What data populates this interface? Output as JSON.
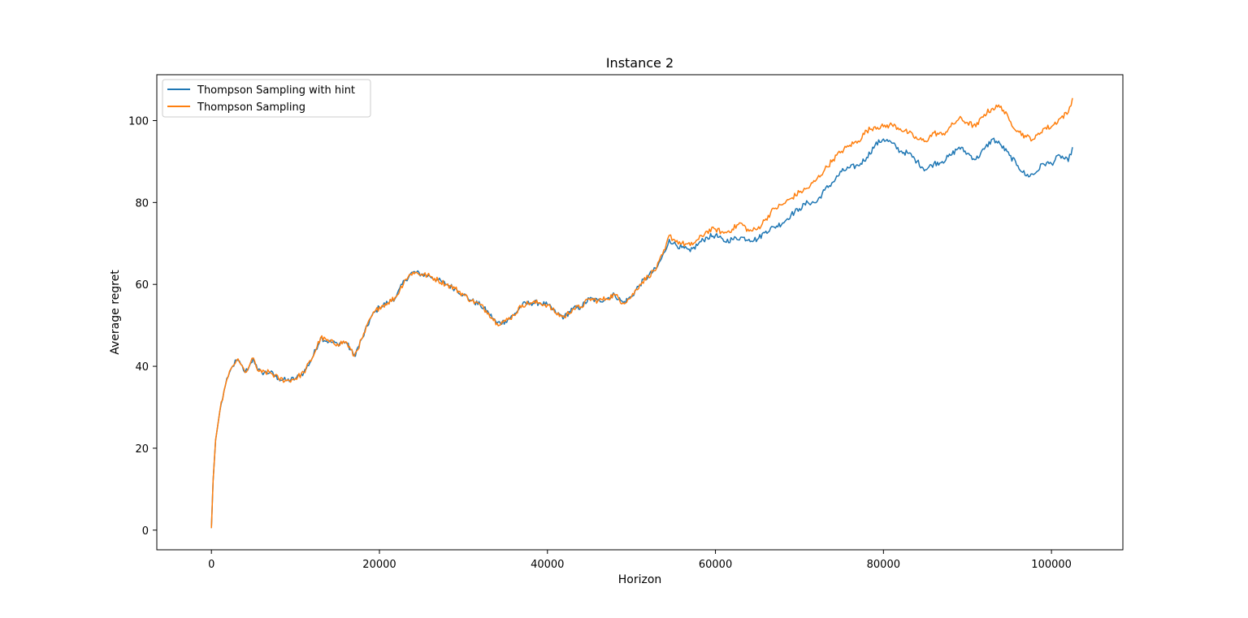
{
  "chart_data": {
    "type": "line",
    "title": "Instance 2",
    "xlabel": "Horizon",
    "ylabel": "Average regret",
    "xlim": [
      -6500,
      108500
    ],
    "ylim": [
      -4.8,
      111.2
    ],
    "xticks": [
      0,
      20000,
      40000,
      60000,
      80000,
      100000
    ],
    "yticks": [
      0,
      20,
      40,
      60,
      80,
      100
    ],
    "grid": false,
    "legend_position": "upper left",
    "series": [
      {
        "name": "Thompson Sampling with hint",
        "color": "#1f77b4",
        "x": [
          0,
          200,
          500,
          1000,
          1500,
          2000,
          2500,
          3000,
          3500,
          4000,
          4500,
          5000,
          5500,
          6000,
          7000,
          8000,
          9000,
          10000,
          11000,
          12000,
          13000,
          14000,
          15000,
          16000,
          17000,
          18000,
          19000,
          20000,
          21000,
          22000,
          23000,
          24000,
          25000,
          26000,
          27000,
          28000,
          29000,
          30000,
          31000,
          32000,
          33000,
          34000,
          35000,
          36000,
          37000,
          38000,
          39000,
          40000,
          41000,
          42000,
          43000,
          44000,
          45000,
          46000,
          47000,
          48000,
          49000,
          50000,
          51000,
          52000,
          53000,
          54000,
          54500,
          55000,
          56000,
          57000,
          58000,
          59000,
          60000,
          61000,
          62000,
          63000,
          64000,
          65000,
          66000,
          67000,
          68000,
          69000,
          70000,
          71000,
          72000,
          73000,
          74000,
          75000,
          76000,
          77000,
          78000,
          79000,
          80000,
          81000,
          82000,
          83000,
          84000,
          85000,
          86000,
          87000,
          88000,
          89000,
          90000,
          91000,
          92000,
          93000,
          94000,
          95000,
          96000,
          97000,
          98000,
          99000,
          100000,
          101000,
          102000,
          102500
        ],
        "y": [
          0.5,
          12,
          22,
          29,
          34,
          37.5,
          40,
          41.5,
          40.5,
          38.5,
          40,
          42,
          39,
          38.5,
          38.5,
          37,
          36.5,
          37,
          38.5,
          42,
          47,
          46,
          45.5,
          46,
          42.5,
          47,
          52,
          54.5,
          55.5,
          57,
          61,
          63,
          62.5,
          62,
          61,
          60,
          59,
          57.5,
          56,
          55,
          53,
          50.5,
          51,
          52.5,
          55,
          55.5,
          55.5,
          55,
          53,
          52,
          54,
          54.5,
          56.5,
          56,
          56.5,
          57.5,
          55.5,
          57,
          60,
          62,
          64,
          68,
          71,
          70,
          69,
          68,
          70,
          71.5,
          72,
          70.5,
          71,
          71.5,
          71,
          71,
          73,
          74,
          75,
          77,
          78.5,
          80,
          80,
          83,
          85,
          87.5,
          88.5,
          89,
          91,
          94,
          95.5,
          94.5,
          92.5,
          92,
          90,
          88,
          89.5,
          90,
          91.5,
          93.5,
          92,
          90.5,
          93,
          95.5,
          94,
          91.5,
          89,
          86.5,
          87,
          89.5,
          89.5,
          91.5,
          90,
          93.5
        ]
      },
      {
        "name": "Thompson Sampling",
        "color": "#ff7f0e",
        "x": [
          0,
          200,
          500,
          1000,
          1500,
          2000,
          2500,
          3000,
          3500,
          4000,
          4500,
          5000,
          5500,
          6000,
          7000,
          8000,
          9000,
          10000,
          11000,
          12000,
          13000,
          14000,
          15000,
          16000,
          17000,
          18000,
          19000,
          20000,
          21000,
          22000,
          23000,
          24000,
          25000,
          26000,
          27000,
          28000,
          29000,
          30000,
          31000,
          32000,
          33000,
          34000,
          35000,
          36000,
          37000,
          38000,
          39000,
          40000,
          41000,
          42000,
          43000,
          44000,
          45000,
          46000,
          47000,
          48000,
          49000,
          50000,
          51000,
          52000,
          53000,
          54000,
          54500,
          55000,
          56000,
          57000,
          58000,
          59000,
          60000,
          61000,
          62000,
          63000,
          64000,
          65000,
          66000,
          67000,
          68000,
          69000,
          70000,
          71000,
          72000,
          73000,
          74000,
          75000,
          76000,
          77000,
          78000,
          79000,
          80000,
          81000,
          82000,
          83000,
          84000,
          85000,
          86000,
          87000,
          88000,
          89000,
          90000,
          91000,
          92000,
          93000,
          94000,
          95000,
          96000,
          97000,
          98000,
          99000,
          100000,
          101000,
          102000,
          102500
        ],
        "y": [
          0.5,
          12,
          22,
          29,
          34,
          37.5,
          40,
          41.5,
          40.5,
          38.5,
          40,
          42,
          39,
          38.5,
          38.5,
          37,
          36.5,
          37,
          38.5,
          42,
          47,
          46,
          45.5,
          46,
          42.5,
          47,
          52,
          54.5,
          55.5,
          57,
          61,
          63,
          62.5,
          62,
          61,
          60,
          59,
          57.5,
          56,
          55,
          53,
          50.5,
          51,
          52.5,
          55,
          55.5,
          55.5,
          55,
          53,
          52,
          54,
          54.5,
          56.5,
          56,
          56.5,
          57.5,
          55.5,
          57,
          60,
          62,
          64,
          68.5,
          72,
          71,
          70,
          69.5,
          71,
          73,
          73.5,
          72.5,
          73.5,
          75,
          73,
          73.5,
          76,
          78.5,
          79.5,
          81,
          82.5,
          83.5,
          85.5,
          88,
          90.5,
          92.5,
          94,
          95,
          97.5,
          98.5,
          98.5,
          99,
          98,
          97,
          95.5,
          95,
          97,
          96.5,
          98.5,
          100.5,
          99.5,
          98.5,
          101.5,
          103,
          103.5,
          100,
          97.5,
          96,
          95.5,
          98,
          98.5,
          100.5,
          102,
          105.5
        ]
      }
    ]
  }
}
